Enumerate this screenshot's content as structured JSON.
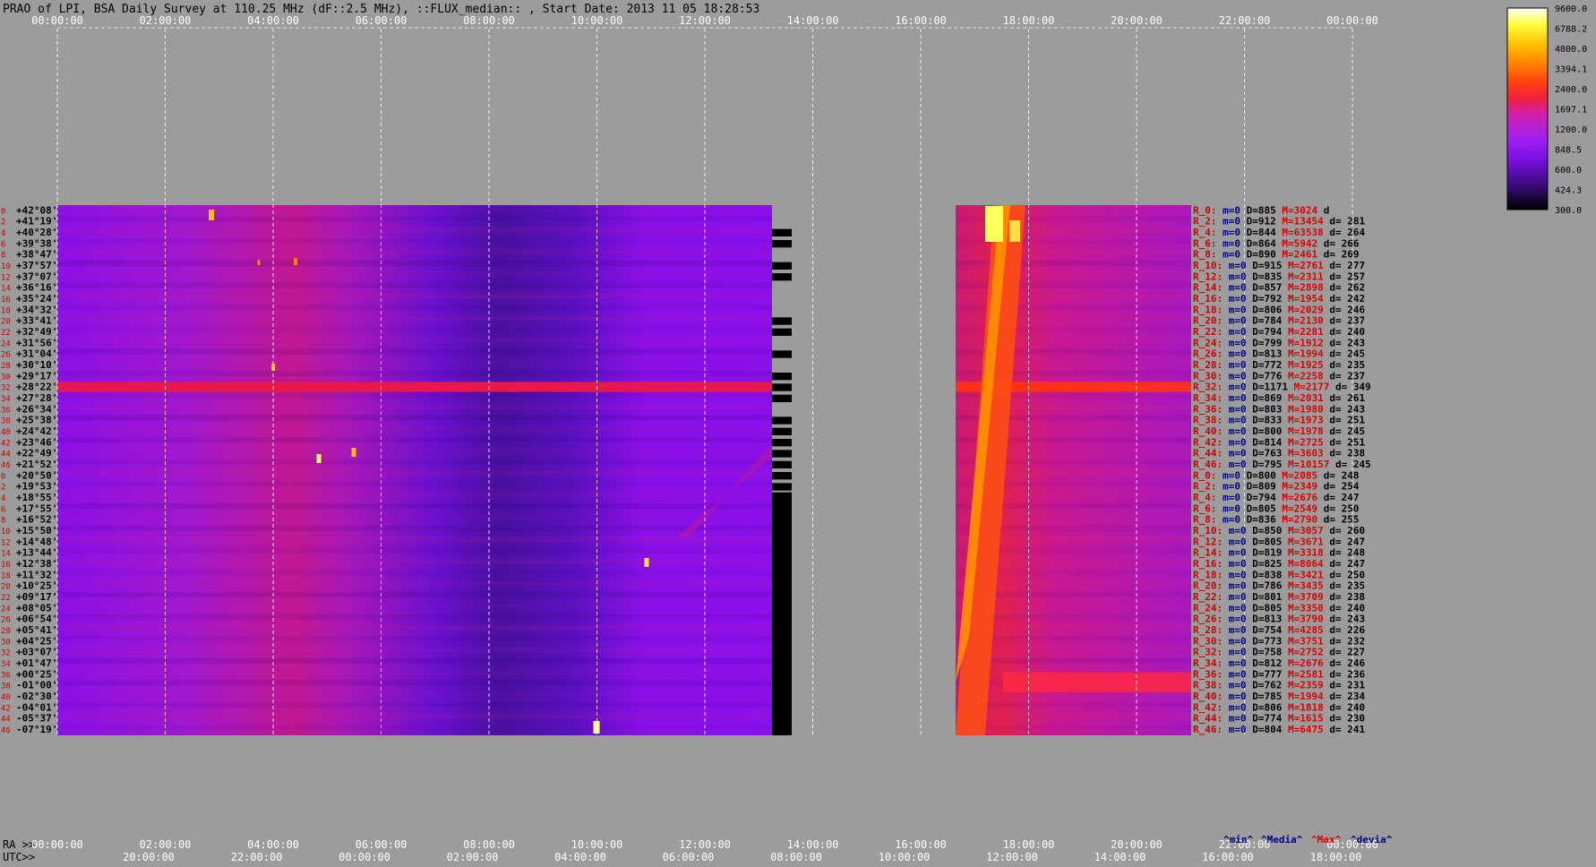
{
  "chart_data": {
    "type": "heatmap",
    "title": "PRAO of LPI, BSA Daily Survey at 110.25 MHz (dF::2.5 MHz), ::FLUX_median:: , Start Date: 2013 11 05 18:28:53",
    "x_ra_ticks": [
      "00:00:00",
      "02:00:00",
      "04:00:00",
      "06:00:00",
      "08:00:00",
      "10:00:00",
      "12:00:00",
      "14:00:00",
      "16:00:00",
      "18:00:00",
      "20:00:00",
      "22:00:00",
      "00:00:00"
    ],
    "x_utc_ticks": [
      "20:00:00",
      "22:00:00",
      "00:00:00",
      "02:00:00",
      "04:00:00",
      "06:00:00",
      "08:00:00",
      "10:00:00",
      "12:00:00",
      "14:00:00",
      "16:00:00",
      "18:00:00"
    ],
    "ra_axis_label": "RA >>",
    "utc_axis_label": "UTC>>",
    "colorbar": {
      "ticks": [
        "9600.0",
        "6788.2",
        "4800.0",
        "3394.1",
        "2400.0",
        "1697.1",
        "1200.0",
        "848.5",
        "600.0",
        "424.3",
        "300.0"
      ],
      "colors": [
        "#000000",
        "#3a0a7a",
        "#7a10e0",
        "#a020f0",
        "#d020b0",
        "#f02040",
        "#ff4010",
        "#ff8000",
        "#ffc000",
        "#ffff40",
        "#ffffff"
      ]
    },
    "declinations": [
      "+42°08'",
      "+41°19'",
      "+40°28'",
      "+39°38'",
      "+38°47'",
      "+37°57'",
      "+37°07'",
      "+36°16'",
      "+35°24'",
      "+34°32'",
      "+33°41'",
      "+32°49'",
      "+31°56'",
      "+31°04'",
      "+30°10'",
      "+29°17'",
      "+28°22'",
      "+27°28'",
      "+26°34'",
      "+25°38'",
      "+24°42'",
      "+23°46'",
      "+22°49'",
      "+21°52'",
      "+20°50'",
      "+19°53'",
      "+18°55'",
      "+17°55'",
      "+16°52'",
      "+15°50'",
      "+14°48'",
      "+13°44'",
      "+12°38'",
      "+11°32'",
      "+10°25'",
      "+09°17'",
      "+08°05'",
      "+06°54'",
      "+05°41'",
      "+04°25'",
      "+03°07'",
      "+01°47'",
      "+00°25'",
      "-01°00'",
      "-02°30'",
      "-04°01'",
      "-05°37'",
      "-07°19'"
    ],
    "row_indices": [
      "0",
      "2",
      "4",
      "6",
      "8",
      "10",
      "12",
      "14",
      "16",
      "18",
      "20",
      "22",
      "24",
      "26",
      "28",
      "30",
      "32",
      "34",
      "36",
      "38",
      "40",
      "42",
      "44",
      "46",
      "0",
      "2",
      "4",
      "6",
      "8",
      "10",
      "12",
      "14",
      "16",
      "18",
      "20",
      "22",
      "24",
      "26",
      "28",
      "30",
      "32",
      "34",
      "36",
      "38",
      "40",
      "42",
      "44",
      "46"
    ],
    "stats": [
      {
        "r": "R_0:",
        "m": "m=0",
        "d": "D=885",
        "h": "M=3024",
        "dev": "d"
      },
      {
        "r": "R_2:",
        "m": "m=0",
        "d": "D=912",
        "h": "M=13454",
        "dev": "d= 281"
      },
      {
        "r": "R_4:",
        "m": "m=0",
        "d": "D=844",
        "h": "M=63538",
        "dev": "d= 264"
      },
      {
        "r": "R_6:",
        "m": "m=0",
        "d": "D=864",
        "h": "M=5942",
        "dev": "d= 266"
      },
      {
        "r": "R_8:",
        "m": "m=0",
        "d": "D=890",
        "h": "M=2461",
        "dev": "d= 269"
      },
      {
        "r": "R_10:",
        "m": "m=0",
        "d": "D=915",
        "h": "M=2761",
        "dev": "d= 277"
      },
      {
        "r": "R_12:",
        "m": "m=0",
        "d": "D=835",
        "h": "M=2311",
        "dev": "d= 257"
      },
      {
        "r": "R_14:",
        "m": "m=0",
        "d": "D=857",
        "h": "M=2898",
        "dev": "d= 262"
      },
      {
        "r": "R_16:",
        "m": "m=0",
        "d": "D=792",
        "h": "M=1954",
        "dev": "d= 242"
      },
      {
        "r": "R_18:",
        "m": "m=0",
        "d": "D=806",
        "h": "M=2029",
        "dev": "d= 246"
      },
      {
        "r": "R_20:",
        "m": "m=0",
        "d": "D=784",
        "h": "M=2130",
        "dev": "d= 237"
      },
      {
        "r": "R_22:",
        "m": "m=0",
        "d": "D=794",
        "h": "M=2281",
        "dev": "d= 240"
      },
      {
        "r": "R_24:",
        "m": "m=0",
        "d": "D=799",
        "h": "M=1912",
        "dev": "d= 243"
      },
      {
        "r": "R_26:",
        "m": "m=0",
        "d": "D=813",
        "h": "M=1994",
        "dev": "d= 245"
      },
      {
        "r": "R_28:",
        "m": "m=0",
        "d": "D=772",
        "h": "M=1925",
        "dev": "d= 235"
      },
      {
        "r": "R_30:",
        "m": "m=0",
        "d": "D=776",
        "h": "M=2258",
        "dev": "d= 237"
      },
      {
        "r": "R_32:",
        "m": "m=0",
        "d": "D=1171",
        "h": "M=2177",
        "dev": "d= 349"
      },
      {
        "r": "R_34:",
        "m": "m=0",
        "d": "D=869",
        "h": "M=2031",
        "dev": "d= 261"
      },
      {
        "r": "R_36:",
        "m": "m=0",
        "d": "D=803",
        "h": "M=1980",
        "dev": "d= 243"
      },
      {
        "r": "R_38:",
        "m": "m=0",
        "d": "D=833",
        "h": "M=1973",
        "dev": "d= 251"
      },
      {
        "r": "R_40:",
        "m": "m=0",
        "d": "D=800",
        "h": "M=1978",
        "dev": "d= 245"
      },
      {
        "r": "R_42:",
        "m": "m=0",
        "d": "D=814",
        "h": "M=2725",
        "dev": "d= 251"
      },
      {
        "r": "R_44:",
        "m": "m=0",
        "d": "D=763",
        "h": "M=3603",
        "dev": "d= 238"
      },
      {
        "r": "R_46:",
        "m": "m=0",
        "d": "D=795",
        "h": "M=10157",
        "dev": "d= 245"
      },
      {
        "r": "R_0:",
        "m": "m=0",
        "d": "D=800",
        "h": "M=2085",
        "dev": "d= 248"
      },
      {
        "r": "R_2:",
        "m": "m=0",
        "d": "D=809",
        "h": "M=2349",
        "dev": "d= 254"
      },
      {
        "r": "R_4:",
        "m": "m=0",
        "d": "D=794",
        "h": "M=2676",
        "dev": "d= 247"
      },
      {
        "r": "R_6:",
        "m": "m=0",
        "d": "D=805",
        "h": "M=2549",
        "dev": "d= 250"
      },
      {
        "r": "R_8:",
        "m": "m=0",
        "d": "D=836",
        "h": "M=2790",
        "dev": "d= 255"
      },
      {
        "r": "R_10:",
        "m": "m=0",
        "d": "D=850",
        "h": "M=3057",
        "dev": "d= 260"
      },
      {
        "r": "R_12:",
        "m": "m=0",
        "d": "D=805",
        "h": "M=3671",
        "dev": "d= 247"
      },
      {
        "r": "R_14:",
        "m": "m=0",
        "d": "D=819",
        "h": "M=3318",
        "dev": "d= 248"
      },
      {
        "r": "R_16:",
        "m": "m=0",
        "d": "D=825",
        "h": "M=8064",
        "dev": "d= 247"
      },
      {
        "r": "R_18:",
        "m": "m=0",
        "d": "D=838",
        "h": "M=3421",
        "dev": "d= 250"
      },
      {
        "r": "R_20:",
        "m": "m=0",
        "d": "D=786",
        "h": "M=3435",
        "dev": "d= 235"
      },
      {
        "r": "R_22:",
        "m": "m=0",
        "d": "D=801",
        "h": "M=3709",
        "dev": "d= 238"
      },
      {
        "r": "R_24:",
        "m": "m=0",
        "d": "D=805",
        "h": "M=3350",
        "dev": "d= 240"
      },
      {
        "r": "R_26:",
        "m": "m=0",
        "d": "D=813",
        "h": "M=3790",
        "dev": "d= 243"
      },
      {
        "r": "R_28:",
        "m": "m=0",
        "d": "D=754",
        "h": "M=4285",
        "dev": "d= 226"
      },
      {
        "r": "R_30:",
        "m": "m=0",
        "d": "D=773",
        "h": "M=3751",
        "dev": "d= 232"
      },
      {
        "r": "R_32:",
        "m": "m=0",
        "d": "D=758",
        "h": "M=2752",
        "dev": "d= 227"
      },
      {
        "r": "R_34:",
        "m": "m=0",
        "d": "D=812",
        "h": "M=2676",
        "dev": "d= 246"
      },
      {
        "r": "R_36:",
        "m": "m=0",
        "d": "D=777",
        "h": "M=2581",
        "dev": "d= 236"
      },
      {
        "r": "R_38:",
        "m": "m=0",
        "d": "D=762",
        "h": "M=2359",
        "dev": "d= 231"
      },
      {
        "r": "R_40:",
        "m": "m=0",
        "d": "D=785",
        "h": "M=1994",
        "dev": "d= 234"
      },
      {
        "r": "R_42:",
        "m": "m=0",
        "d": "D=806",
        "h": "M=1818",
        "dev": "d= 240"
      },
      {
        "r": "R_44:",
        "m": "m=0",
        "d": "D=774",
        "h": "M=1615",
        "dev": "d= 230"
      },
      {
        "r": "R_46:",
        "m": "m=0",
        "d": "D=804",
        "h": "M=6475",
        "dev": "d= 241"
      }
    ],
    "stats_legend": [
      "^min^",
      "^Media^",
      "^Max^",
      "^devia^"
    ],
    "data_gap_ra": [
      "15:00:00",
      "19:15:00"
    ]
  }
}
